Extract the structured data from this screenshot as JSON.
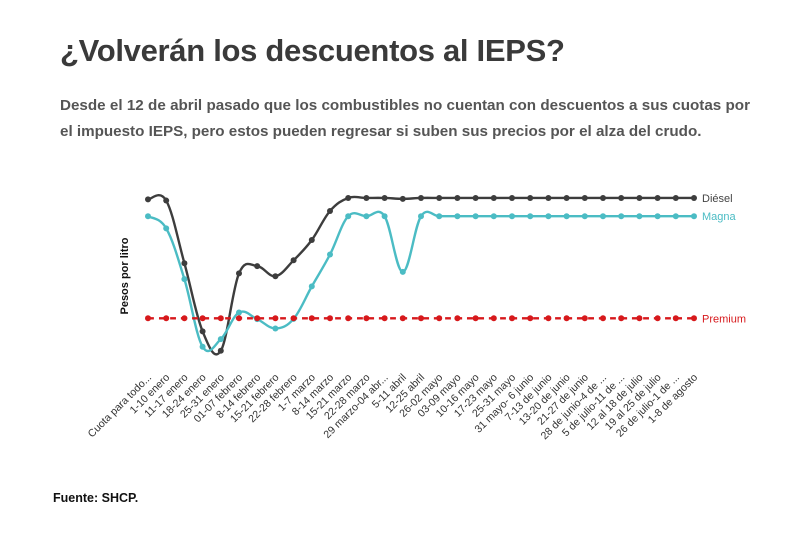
{
  "title": "¿Volverán los descuentos al IEPS?",
  "subtitle": "Desde el 12 de abril pasado que los combustibles no cuentan con descuentos a sus cuotas por el impuesto IEPS, pero estos pueden regresar si suben sus precios por el alza del crudo.",
  "source": "Fuente: SHCP.",
  "chart_data": {
    "type": "line",
    "ylabel": "Pesos por litro",
    "xlabel": "",
    "grid": false,
    "legend": "right end of each line",
    "categories": [
      "Cuota para todo...",
      "1-10 enero",
      "11-17 enero",
      "18-24 enero",
      "25-31 enero",
      "01-07 febrero",
      "8-14 febrero",
      "15-21 febrero",
      "22-28 febrero",
      "1-7 marzo",
      "8-14 marzo",
      "15-21 marzo",
      "22-28 marzo",
      "29 marzo-04 abr...",
      "5-11 abril",
      "12-25 abril",
      "26-02 mayo",
      "03-09 mayo",
      "10-16 mayo",
      "17-23 mayo",
      "25-31 mayo",
      "31 mayo- 6 junio",
      "7-13 de junio",
      "13-20 de junio",
      "21-27 de junio",
      "28 de junio-4 de ...",
      "5 de julio-11 de ...",
      "12 al 18 de julio",
      "19 al 25 de julio",
      "26 de julio-1 de ...",
      "1-8 de agosto"
    ],
    "ylim": [
      0,
      6
    ],
    "series": [
      {
        "name": "Diésel",
        "color": "#3d3d3d",
        "values": [
          5.4,
          5.36,
          3.2,
          0.85,
          0.18,
          2.85,
          3.1,
          2.75,
          3.3,
          4.0,
          5.0,
          5.45,
          5.45,
          5.45,
          5.42,
          5.45,
          5.45,
          5.45,
          5.45,
          5.45,
          5.45,
          5.45,
          5.45,
          5.45,
          5.45,
          5.45,
          5.45,
          5.45,
          5.45,
          5.45,
          5.45
        ]
      },
      {
        "name": "Magna",
        "color": "#4bbcc4",
        "values": [
          4.82,
          4.4,
          2.65,
          0.32,
          0.58,
          1.5,
          1.27,
          0.95,
          1.28,
          2.4,
          3.5,
          4.82,
          4.82,
          4.82,
          2.9,
          4.82,
          4.82,
          4.82,
          4.82,
          4.82,
          4.82,
          4.82,
          4.82,
          4.82,
          4.82,
          4.82,
          4.82,
          4.82,
          4.82,
          4.82,
          4.82
        ]
      },
      {
        "name": "Premium",
        "color": "#d7191c",
        "values": [
          1.3,
          1.3,
          1.3,
          1.3,
          1.3,
          1.3,
          1.3,
          1.3,
          1.3,
          1.3,
          1.3,
          1.3,
          1.3,
          1.3,
          1.3,
          1.3,
          1.3,
          1.3,
          1.3,
          1.3,
          1.3,
          1.3,
          1.3,
          1.3,
          1.3,
          1.3,
          1.3,
          1.3,
          1.3,
          1.3,
          1.3
        ]
      }
    ]
  }
}
